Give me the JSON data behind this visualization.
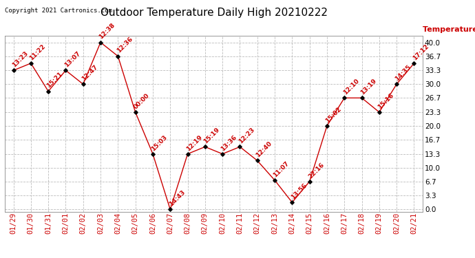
{
  "title": "Outdoor Temperature Daily High 20210222",
  "copyright": "Copyright 2021 Cartronics.com",
  "ylabel": "Temperature (°F)",
  "dates": [
    "01/29",
    "01/30",
    "01/31",
    "02/01",
    "02/02",
    "02/03",
    "02/04",
    "02/05",
    "02/06",
    "02/07",
    "02/08",
    "02/09",
    "02/10",
    "02/11",
    "02/12",
    "02/13",
    "02/14",
    "02/15",
    "02/16",
    "02/17",
    "02/18",
    "02/19",
    "02/20",
    "02/21"
  ],
  "values": [
    33.3,
    35.0,
    28.3,
    33.3,
    30.0,
    40.0,
    36.7,
    23.3,
    13.3,
    0.0,
    13.3,
    15.0,
    13.3,
    15.0,
    11.7,
    7.0,
    1.7,
    6.7,
    20.0,
    26.7,
    26.7,
    23.3,
    30.0,
    35.0
  ],
  "labels": [
    "13:23",
    "11:22",
    "15:21",
    "13:07",
    "12:47",
    "12:38",
    "12:36",
    "00:00",
    "15:03",
    "14:43",
    "12:19",
    "15:19",
    "13:36",
    "12:23",
    "12:40",
    "11:07",
    "13:56",
    "22:16",
    "15:02",
    "12:10",
    "13:19",
    "15:16",
    "14:35",
    "17:12"
  ],
  "line_color": "#cc0000",
  "marker_color": "#000000",
  "label_color": "#cc0000",
  "grid_color": "#bbbbbb",
  "bg_color": "#ffffff",
  "title_color": "#000000",
  "copyright_color": "#000000",
  "ylabel_color": "#cc0000",
  "yticks": [
    0.0,
    3.3,
    6.7,
    10.0,
    13.3,
    16.7,
    20.0,
    23.3,
    26.7,
    30.0,
    33.3,
    36.7,
    40.0
  ],
  "ylim": [
    -0.5,
    41.5
  ],
  "title_fontsize": 11,
  "label_fontsize": 6.5,
  "tick_fontsize": 7.5,
  "copyright_fontsize": 6.5,
  "ylabel_fontsize": 8
}
